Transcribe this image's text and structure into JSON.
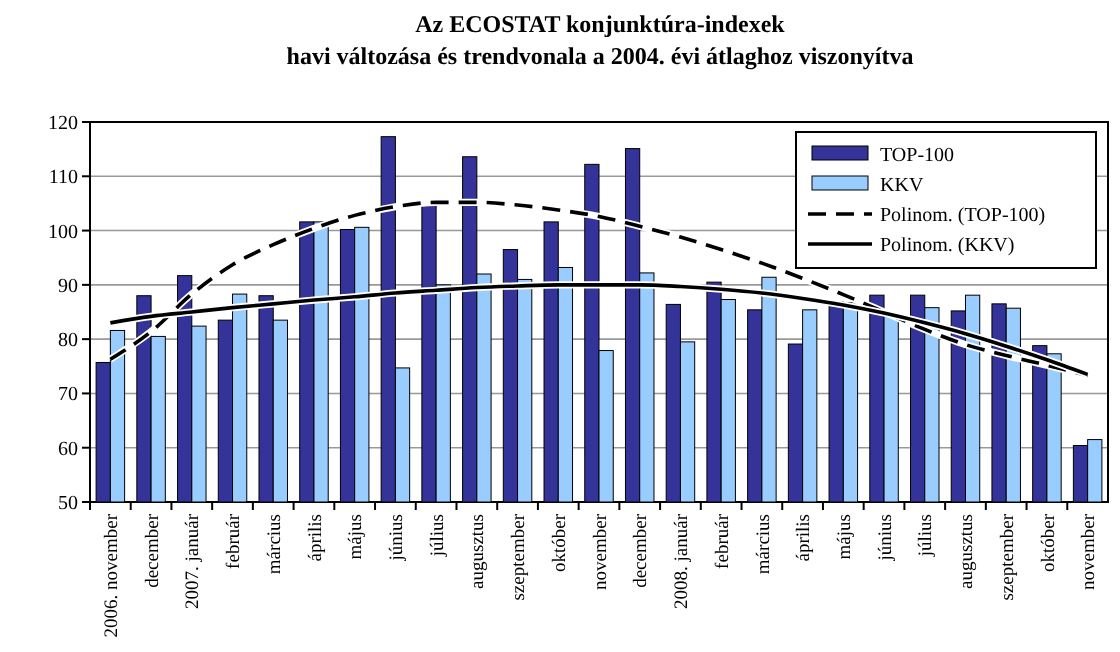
{
  "chart_data": {
    "type": "bar",
    "title": "Az ECOSTAT  konjunktúra-indexek\nhavi változása és trendvonala a 2004. évi átlaghoz viszonyítva",
    "categories": [
      "2006. november",
      "december",
      "2007. január",
      "február",
      "március",
      "április",
      "május",
      "június",
      "július",
      "augusztus",
      "szeptember",
      "október",
      "november",
      "december",
      "2008. január",
      "február",
      "március",
      "április",
      "május",
      "június",
      "július",
      "augusztus",
      "szeptember",
      "október",
      "november"
    ],
    "series": [
      {
        "name": "TOP-100",
        "color": "#333399",
        "values": [
          75.7,
          88,
          91.7,
          83.5,
          88,
          101.6,
          100.2,
          117.3,
          105,
          113.6,
          96.5,
          101.6,
          112.2,
          115.1,
          86.4,
          90.5,
          85.4,
          79.1,
          86.9,
          88.1,
          88.1,
          85.2,
          86.5,
          78.8,
          60.4
        ]
      },
      {
        "name": "KKV",
        "color": "#99ccff",
        "values": [
          81.6,
          80.5,
          82.4,
          88.3,
          83.5,
          101.6,
          100.6,
          74.7,
          90,
          92,
          91,
          93.2,
          77.9,
          92.2,
          79.5,
          87.3,
          91.4,
          85.4,
          86.7,
          84.4,
          85.8,
          88.1,
          85.7,
          77.3,
          61.5
        ]
      },
      {
        "name": "Polinom. (TOP-100)",
        "type": "line",
        "line_style": "dashed",
        "color": "#000000",
        "values": [
          76.3,
          81.4,
          88.3,
          93.7,
          97.4,
          100.4,
          102.8,
          104.4,
          105.2,
          105.2,
          104.7,
          103.8,
          102.6,
          100.8,
          98.8,
          96.5,
          94,
          91.2,
          88.2,
          85,
          81.8,
          79,
          77,
          75.2,
          73.3
        ]
      },
      {
        "name": "Polinom. (KKV)",
        "type": "line",
        "line_style": "solid",
        "color": "#000000",
        "values": [
          83,
          84.2,
          85,
          85.8,
          86.5,
          87.2,
          87.8,
          88.5,
          89,
          89.5,
          89.8,
          90,
          90,
          90,
          89.7,
          89.2,
          88.5,
          87.5,
          86.3,
          84.8,
          83,
          81,
          78.7,
          76.2,
          73.5
        ]
      }
    ],
    "ylim": [
      50,
      120
    ],
    "yticks": [
      50,
      60,
      70,
      80,
      90,
      100,
      110,
      120
    ],
    "grid": "y",
    "legend": "top right",
    "marker": "none"
  }
}
